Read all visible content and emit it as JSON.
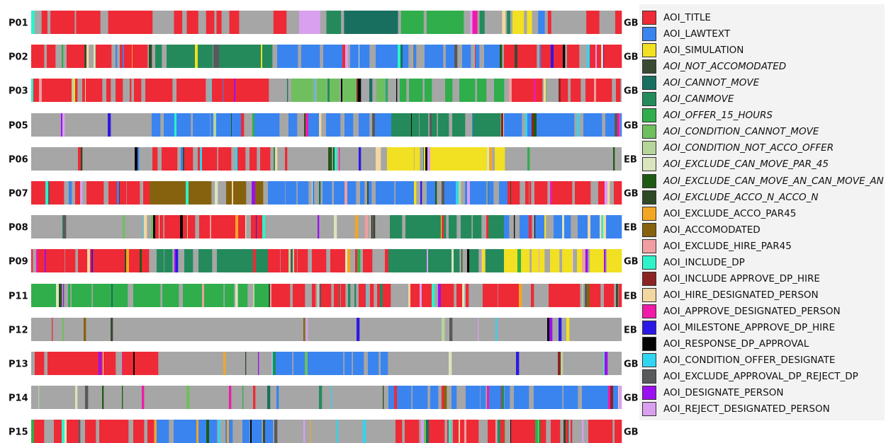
{
  "chart_data": {
    "type": "sequence",
    "participants": [
      {
        "id": "P01",
        "group": "GB",
        "segments": [
          {
            "aoi": "AOI_INCLUDE_DP",
            "w": 4
          },
          {
            "aoi": "other",
            "w": 9
          },
          {
            "aoi": "AOI_TITLE",
            "w": 7
          },
          {
            "aoi": "other",
            "w": 4
          },
          {
            "aoi": "AOI_TITLE",
            "w": 30
          },
          {
            "aoi": "other",
            "w": 2
          },
          {
            "aoi": "AOI_TITLE",
            "w": 30
          },
          {
            "aoi": "other",
            "w": 10
          },
          {
            "aoi": "AOI_TITLE",
            "w": 55
          },
          {
            "aoi": "other",
            "w": 27
          },
          {
            "aoi": "AOI_TITLE",
            "w": 10
          },
          {
            "aoi": "other",
            "w": 6
          },
          {
            "aoi": "AOI_TITLE",
            "w": 14
          },
          {
            "aoi": "other",
            "w": 10
          },
          {
            "aoi": "AOI_TITLE",
            "w": 10
          },
          {
            "aoi": "other",
            "w": 3
          },
          {
            "aoi": "AOI_TITLE",
            "w": 6
          },
          {
            "aoi": "other",
            "w": 10
          },
          {
            "aoi": "AOI_TITLE",
            "w": 12
          },
          {
            "aoi": "other",
            "w": 43
          },
          {
            "aoi": "AOI_TITLE",
            "w": 16
          },
          {
            "aoi": "other",
            "w": 16
          },
          {
            "aoi": "AOI_REJECT_DESIGNATED_PERSON",
            "w": 26
          },
          {
            "aoi": "other",
            "w": 8
          },
          {
            "aoi": "AOI_CANMOVE",
            "w": 18
          },
          {
            "aoi": "other",
            "w": 4
          },
          {
            "aoi": "AOI_CANNOT_MOVE",
            "w": 67
          },
          {
            "aoi": "other",
            "w": 4
          },
          {
            "aoi": "AOI_OFFER_15_HOURS",
            "w": 28
          },
          {
            "aoi": "other",
            "w": 4
          },
          {
            "aoi": "AOI_OFFER_15_HOURS",
            "w": 46
          },
          {
            "aoi": "other",
            "w": 8
          },
          {
            "aoi": "AOI_REJECT_DESIGNATED_PERSON",
            "w": 3
          },
          {
            "aoi": "AOI_APPROVE_DESIGNATED_PERSON",
            "w": 6
          },
          {
            "aoi": "other",
            "w": 3
          },
          {
            "aoi": "AOI_CANMOVE",
            "w": 6
          },
          {
            "aoi": "other",
            "w": 22
          },
          {
            "aoi": "AOI_HIRE_DESIGNATED_PERSON",
            "w": 4
          },
          {
            "aoi": "other",
            "w": 2
          },
          {
            "aoi": "AOI_CANMOVE",
            "w": 4
          },
          {
            "aoi": "other",
            "w": 3
          },
          {
            "aoi": "AOI_SIMULATION",
            "w": 14
          },
          {
            "aoi": "other",
            "w": 4
          },
          {
            "aoi": "AOI_SIMULATION",
            "w": 6
          },
          {
            "aoi": "other",
            "w": 8
          },
          {
            "aoi": "AOI_LAWTEXT",
            "w": 8
          },
          {
            "aoi": "other",
            "w": 4
          },
          {
            "aoi": "AOI_TITLE",
            "w": 4
          },
          {
            "aoi": "other",
            "w": 44
          },
          {
            "aoi": "AOI_TITLE",
            "w": 16
          },
          {
            "aoi": "other",
            "w": 20
          },
          {
            "aoi": "AOI_TITLE",
            "w": 8
          }
        ]
      },
      {
        "id": "P02",
        "group": "GB",
        "dominant": [
          "AOI_TITLE",
          "AOI_CANMOVE",
          "AOI_LAWTEXT",
          "AOI_LAWTEXT",
          "AOI_TITLE"
        ]
      },
      {
        "id": "P03",
        "group": "GB",
        "dominant": [
          "AOI_TITLE",
          "AOI_TITLE",
          "AOI_CONDITION_CANNOT_MOVE",
          "AOI_OFFER_15_HOURS",
          "AOI_TITLE"
        ]
      },
      {
        "id": "P05",
        "group": "GB",
        "dominant": [
          "other",
          "AOI_LAWTEXT",
          "AOI_LAWTEXT",
          "AOI_CANMOVE",
          "AOI_LAWTEXT"
        ]
      },
      {
        "id": "P06",
        "group": "EB",
        "dominant": [
          "other",
          "AOI_TITLE",
          "other",
          "AOI_SIMULATION",
          "other"
        ]
      },
      {
        "id": "P07",
        "group": "GB",
        "dominant": [
          "AOI_TITLE",
          "AOI_ACCOMODATED",
          "AOI_LAWTEXT",
          "AOI_LAWTEXT",
          "AOI_TITLE"
        ]
      },
      {
        "id": "P08",
        "group": "EB",
        "dominant": [
          "other",
          "AOI_TITLE",
          "other",
          "AOI_CANMOVE",
          "AOI_LAWTEXT"
        ]
      },
      {
        "id": "P09",
        "group": "GB",
        "dominant": [
          "AOI_TITLE",
          "AOI_CANMOVE",
          "AOI_TITLE",
          "AOI_CANMOVE",
          "AOI_SIMULATION"
        ]
      },
      {
        "id": "P11",
        "group": "EB",
        "dominant": [
          "AOI_OFFER_15_HOURS",
          "AOI_OFFER_15_HOURS",
          "AOI_TITLE",
          "AOI_TITLE",
          "AOI_TITLE"
        ]
      },
      {
        "id": "P12",
        "group": "EB",
        "dominant": [
          "other",
          "other",
          "other",
          "other",
          "other"
        ]
      },
      {
        "id": "P13",
        "group": "GB",
        "dominant": [
          "AOI_TITLE",
          "other",
          "AOI_LAWTEXT",
          "other",
          "other"
        ]
      },
      {
        "id": "P14",
        "group": "GB",
        "dominant": [
          "other",
          "other",
          "other",
          "AOI_LAWTEXT",
          "AOI_LAWTEXT"
        ]
      },
      {
        "id": "P15",
        "group": "GB",
        "dominant": [
          "AOI_TITLE",
          "AOI_LAWTEXT",
          "other",
          "AOI_TITLE",
          "AOI_TITLE"
        ]
      }
    ],
    "legend": [
      {
        "name": "AOI_TITLE",
        "color": "#ee2a36",
        "italic": false
      },
      {
        "name": "AOI_LAWTEXT",
        "color": "#3a84ef",
        "italic": false
      },
      {
        "name": "AOI_SIMULATION",
        "color": "#f2e022",
        "italic": false
      },
      {
        "name": "AOI_NOT_ACCOMODATED",
        "color": "#3a4a32",
        "italic": true
      },
      {
        "name": "AOI_CANNOT_MOVE",
        "color": "#196f5f",
        "italic": true
      },
      {
        "name": "AOI_CANMOVE",
        "color": "#248a5c",
        "italic": true
      },
      {
        "name": "AOI_OFFER_15_HOURS",
        "color": "#2fae4b",
        "italic": true
      },
      {
        "name": "AOI_CONDITION_CANNOT_MOVE",
        "color": "#6fbf5f",
        "italic": true
      },
      {
        "name": "AOI_CONDITION_NOT_ACCO_OFFER",
        "color": "#b6d59a",
        "italic": true
      },
      {
        "name": "AOI_EXCLUDE_CAN_MOVE_PAR_45",
        "color": "#dbe5bd",
        "italic": true
      },
      {
        "name": "AOI_EXCLUDE_CAN_MOVE_AN_CAN_MOVE_AN",
        "color": "#1f5a14",
        "italic": true
      },
      {
        "name": "AOI_EXCLUDE_ACCO_N_ACCO_N",
        "color": "#2d4a24",
        "italic": true
      },
      {
        "name": "AOI_EXCLUDE_ACCO_PAR45",
        "color": "#f3a623",
        "italic": false
      },
      {
        "name": "AOI_ACCOMODATED",
        "color": "#86620f",
        "italic": false
      },
      {
        "name": "AOI_EXCLUDE_HIRE_PAR45",
        "color": "#f09ea0",
        "italic": false
      },
      {
        "name": "AOI_INCLUDE_DP",
        "color": "#2ef2c8",
        "italic": false
      },
      {
        "name": "AOI_INCLUDE APPROVE_DP_HIRE",
        "color": "#8c2424",
        "italic": false
      },
      {
        "name": "AOI_HIRE_DESIGNATED_PERSON",
        "color": "#f2d7a0",
        "italic": false
      },
      {
        "name": "AOI_APPROVE_DESIGNATED_PERSON",
        "color": "#f01aa8",
        "italic": false
      },
      {
        "name": "AOI_MILESTONE_APPROVE_DP_HIRE",
        "color": "#2c18e6",
        "italic": false
      },
      {
        "name": "AOI_RESPONSE_DP_APPROVAL",
        "color": "#050505",
        "italic": false
      },
      {
        "name": "AOI_CONDITION_OFFER_DESIGNATE",
        "color": "#2ed6f2",
        "italic": false
      },
      {
        "name": "AOI_EXCLUDE_APPROVAL_DP_REJECT_DP",
        "color": "#58595b",
        "italic": false
      },
      {
        "name": "AOI_DESIGNATE_PERSON",
        "color": "#9a10f0",
        "italic": false
      },
      {
        "name": "AOI_REJECT_DESIGNATED_PERSON",
        "color": "#d9a0ef",
        "italic": false
      }
    ],
    "other_color": "#a6a6a6"
  }
}
